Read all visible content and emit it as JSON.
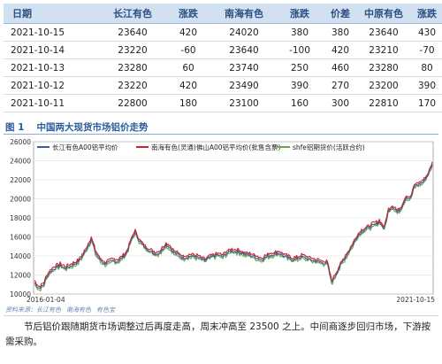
{
  "table": {
    "headers": [
      "日期",
      "长江有色",
      "涨跌",
      "南海有色",
      "涨跌",
      "价差",
      "中原有色",
      "涨跌"
    ],
    "rows": [
      [
        "2021-10-15",
        "23640",
        "420",
        "24020",
        "380",
        "380",
        "23640",
        "430"
      ],
      [
        "2021-10-14",
        "23220",
        "-60",
        "23640",
        "-100",
        "420",
        "23210",
        "-70"
      ],
      [
        "2021-10-13",
        "23280",
        "60",
        "23740",
        "250",
        "460",
        "23280",
        "80"
      ],
      [
        "2021-10-12",
        "23220",
        "420",
        "23490",
        "390",
        "270",
        "23200",
        "390"
      ],
      [
        "2021-10-11",
        "22800",
        "180",
        "23100",
        "160",
        "300",
        "22810",
        "170"
      ]
    ]
  },
  "figure": {
    "number": "图 1",
    "title": "中国两大现货市场铝价走势",
    "source": [
      "资料来源：长江有色",
      "南海有色",
      "有色宝"
    ]
  },
  "chart_data": {
    "type": "line",
    "x_start": "2016-01-04",
    "x_end": "2021-10-15",
    "x_tick_labels": [
      "2016-01-04",
      "2021-10-15"
    ],
    "y_ticks": [
      10000,
      12000,
      14000,
      16000,
      18000,
      20000,
      22000,
      24000,
      26000
    ],
    "ylim": [
      10000,
      26000
    ],
    "grid": true,
    "legend_position": "top",
    "points_per_year": 260,
    "series": [
      {
        "name": "长江有色A00铝平均价",
        "color": "#3a5f9e",
        "offset": 0,
        "values": [
          11200,
          10600,
          10900,
          12000,
          12500,
          12800,
          13000,
          12700,
          12900,
          13100,
          13400,
          14000,
          14800,
          15800,
          14300,
          13600,
          13200,
          13300,
          13500,
          13400,
          13800,
          14200,
          15500,
          16500,
          15600,
          15000,
          14700,
          14300,
          14200,
          14500,
          15200,
          14900,
          14300,
          14100,
          13800,
          13900,
          14000,
          13900,
          13700,
          13500,
          13800,
          14000,
          14100,
          13900,
          14300,
          14500,
          14500,
          14400,
          14200,
          14100,
          14000,
          13800,
          13600,
          13900,
          14100,
          14200,
          14300,
          14000,
          13800,
          13600,
          13700,
          13900,
          13800,
          13600,
          13500,
          13400,
          13300,
          13200,
          11200,
          12100,
          13000,
          13800,
          14500,
          15300,
          16200,
          16600,
          16900,
          17100,
          17300,
          17600,
          16800,
          18800,
          19200,
          18600,
          19100,
          20200,
          20000,
          21400,
          21500,
          21800,
          22500,
          23640
        ]
      },
      {
        "name": "南海有色(灵通)佛山A00铝平均价(批售含票)",
        "color": "#c8232a",
        "offset": 200,
        "values": []
      },
      {
        "name": "shfe铝期货价(活跃合约)",
        "color": "#6aa84f",
        "offset": -150,
        "values": []
      }
    ]
  },
  "paragraph": "节后铝价跟随期货市场调整过后再度走高，周末冲高至 23500 之上。中间商逐步回归市场，下游按需采购。"
}
